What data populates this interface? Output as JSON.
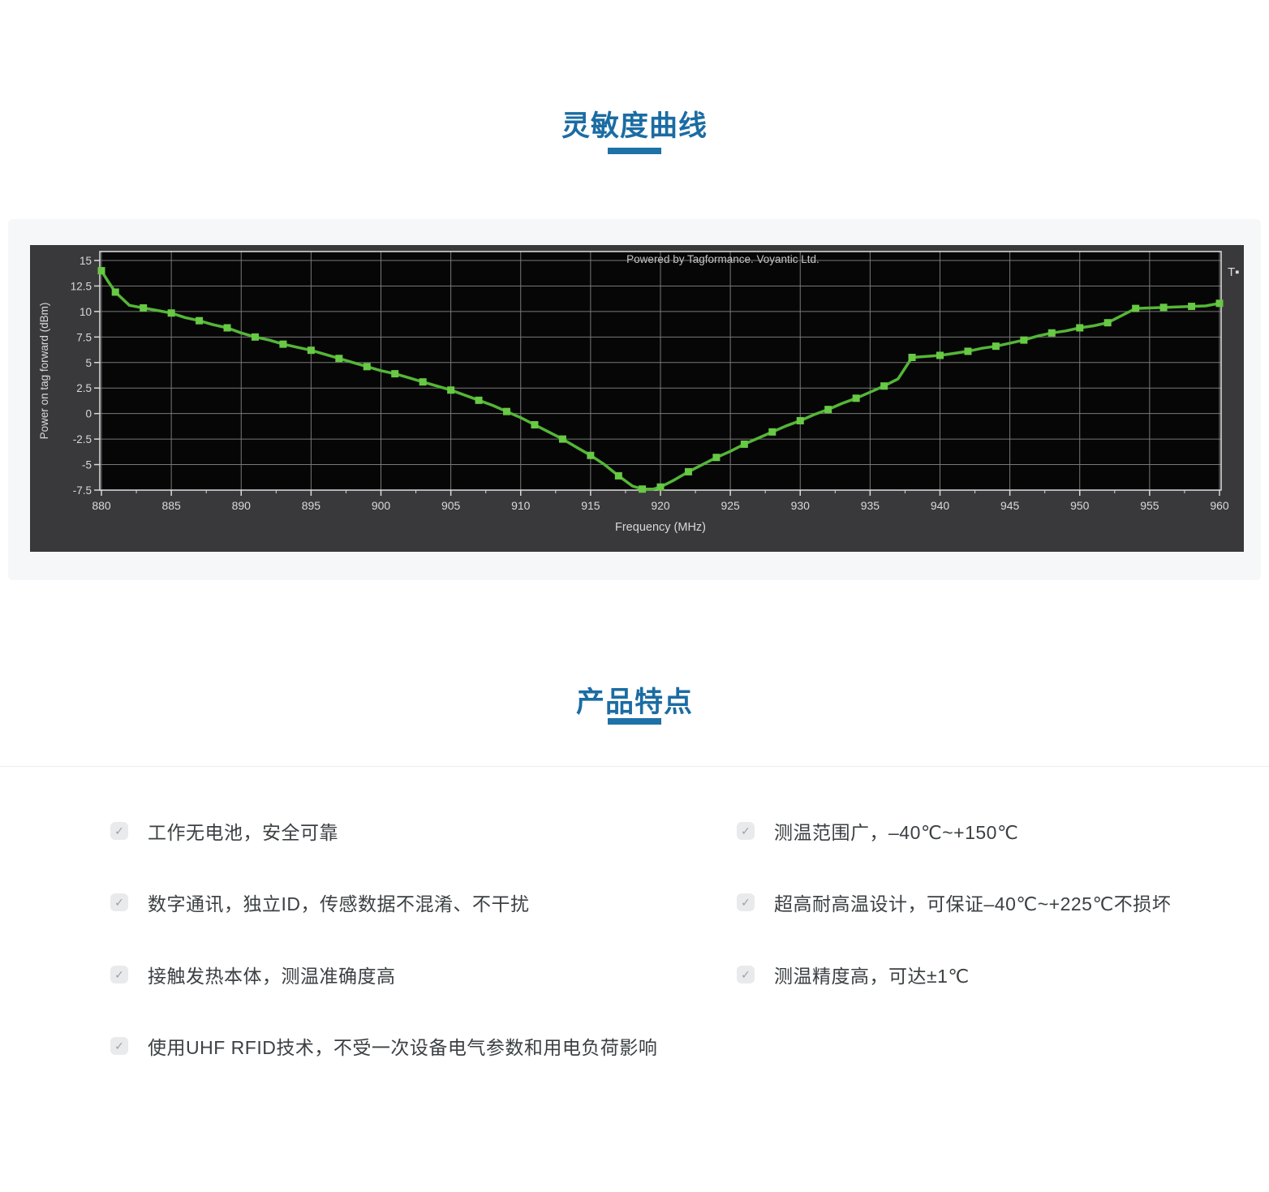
{
  "accent_color": "#1b6ca3",
  "sections": {
    "sensitivity_title": "灵敏度曲线",
    "features_title": "产品特点"
  },
  "chart_data": {
    "type": "line",
    "watermark": "Powered by Tagformance. Voyantic Ltd.",
    "legend_fragment": "T▪",
    "xlabel": "Frequency (MHz)",
    "ylabel": "Power on tag forward (dBm)",
    "xlim": [
      880,
      960
    ],
    "ylim": [
      -7.5,
      15
    ],
    "x_ticks": [
      880,
      885,
      890,
      895,
      900,
      905,
      910,
      915,
      920,
      925,
      930,
      935,
      940,
      945,
      950,
      955,
      960
    ],
    "y_ticks": [
      15,
      12.5,
      10,
      7.5,
      5,
      2.5,
      0,
      -2.5,
      -5,
      -7.5
    ],
    "grid": true,
    "legend_position": "top-right",
    "panel_bg": "#39393b",
    "plot_bg": "#060606",
    "grid_color": "#787878",
    "frame_color": "#e0e0e0",
    "tick_color": "#d9d9d9",
    "watermark_color": "#c4c4c4",
    "line_color": "#54b637",
    "marker_color": "#68c944",
    "marker": "square",
    "series": [
      {
        "name": "Power on tag forward (dBm)",
        "points": [
          [
            880,
            14.0
          ],
          [
            880.5,
            12.9
          ],
          [
            881,
            11.9
          ],
          [
            882,
            10.6
          ],
          [
            883,
            10.35
          ],
          [
            884,
            10.1
          ],
          [
            885,
            9.85
          ],
          [
            886,
            9.4
          ],
          [
            887,
            9.1
          ],
          [
            888,
            8.7
          ],
          [
            889,
            8.4
          ],
          [
            890,
            7.9
          ],
          [
            891,
            7.5
          ],
          [
            892,
            7.2
          ],
          [
            893,
            6.8
          ],
          [
            894,
            6.5
          ],
          [
            895,
            6.2
          ],
          [
            896,
            5.8
          ],
          [
            897,
            5.4
          ],
          [
            898,
            5.0
          ],
          [
            899,
            4.6
          ],
          [
            900,
            4.2
          ],
          [
            901,
            3.9
          ],
          [
            902,
            3.5
          ],
          [
            903,
            3.1
          ],
          [
            904,
            2.7
          ],
          [
            905,
            2.3
          ],
          [
            906,
            1.8
          ],
          [
            907,
            1.3
          ],
          [
            908,
            0.8
          ],
          [
            909,
            0.2
          ],
          [
            910,
            -0.4
          ],
          [
            911,
            -1.1
          ],
          [
            912,
            -1.8
          ],
          [
            913,
            -2.5
          ],
          [
            914,
            -3.3
          ],
          [
            915,
            -4.1
          ],
          [
            916,
            -5.0
          ],
          [
            917,
            -6.1
          ],
          [
            918,
            -7.1
          ],
          [
            918.7,
            -7.4
          ],
          [
            919.5,
            -7.4
          ],
          [
            920,
            -7.2
          ],
          [
            921,
            -6.5
          ],
          [
            922,
            -5.7
          ],
          [
            923,
            -5.0
          ],
          [
            924,
            -4.3
          ],
          [
            925,
            -3.7
          ],
          [
            926,
            -3.0
          ],
          [
            927,
            -2.4
          ],
          [
            928,
            -1.8
          ],
          [
            929,
            -1.2
          ],
          [
            930,
            -0.7
          ],
          [
            931,
            -0.1
          ],
          [
            932,
            0.4
          ],
          [
            933,
            1.0
          ],
          [
            934,
            1.5
          ],
          [
            935,
            2.1
          ],
          [
            936,
            2.7
          ],
          [
            937,
            3.4
          ],
          [
            938,
            5.5
          ],
          [
            939,
            5.6
          ],
          [
            940,
            5.7
          ],
          [
            941,
            5.9
          ],
          [
            942,
            6.1
          ],
          [
            943,
            6.4
          ],
          [
            944,
            6.6
          ],
          [
            945,
            6.9
          ],
          [
            946,
            7.2
          ],
          [
            947,
            7.6
          ],
          [
            948,
            7.9
          ],
          [
            949,
            8.1
          ],
          [
            950,
            8.4
          ],
          [
            951,
            8.6
          ],
          [
            952,
            8.9
          ],
          [
            953,
            9.6
          ],
          [
            954,
            10.3
          ],
          [
            955,
            10.35
          ],
          [
            956,
            10.4
          ],
          [
            957,
            10.45
          ],
          [
            958,
            10.5
          ],
          [
            959,
            10.55
          ],
          [
            960,
            10.8
          ]
        ]
      }
    ]
  },
  "features": {
    "check_glyph": "✓",
    "left": [
      "工作无电池，安全可靠",
      "数字通讯，独立ID，传感数据不混淆、不干扰",
      "接触发热本体，测温准确度高",
      "使用UHF RFID技术，不受一次设备电气参数和用电负荷影响"
    ],
    "right": [
      "测温范围广，–40℃~+150℃",
      "超高耐高温设计，可保证–40℃~+225℃不损坏",
      "测温精度高，可达±1℃"
    ]
  }
}
